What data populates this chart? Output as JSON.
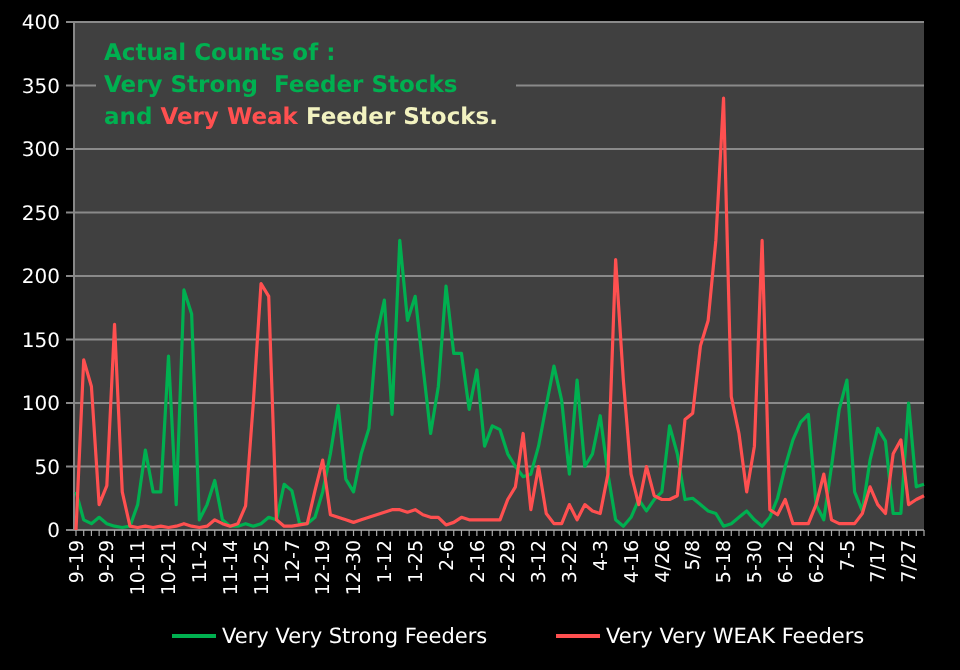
{
  "chart_data": {
    "type": "line",
    "title": "Actual Counts of :\nVery Strong  Feeder Stocks",
    "subtitle": "and Very Weak Feeder Stocks.",
    "categories": [
      "9-19",
      null,
      null,
      null,
      "9-29",
      null,
      null,
      null,
      "10-11",
      null,
      null,
      null,
      "10-21",
      null,
      null,
      null,
      "11-2",
      null,
      null,
      null,
      "11-14",
      null,
      null,
      null,
      "11-25",
      null,
      null,
      null,
      "12-7",
      null,
      null,
      null,
      "12-19",
      null,
      null,
      null,
      "12-30",
      null,
      null,
      null,
      "1-12",
      null,
      null,
      null,
      "1-25",
      null,
      null,
      null,
      "2-6",
      null,
      null,
      null,
      "2-16",
      null,
      null,
      null,
      "2-29",
      null,
      null,
      null,
      "3-12",
      null,
      null,
      null,
      "3-22",
      null,
      null,
      null,
      "4-3",
      null,
      null,
      null,
      "4-16",
      null,
      null,
      null,
      "4/26",
      null,
      null,
      null,
      "5/8",
      null,
      null,
      null,
      "5-18",
      null,
      null,
      null,
      "5-30",
      null,
      null,
      null,
      "6-12",
      null,
      null,
      null,
      "6-22",
      null,
      null,
      null,
      "7-5",
      null,
      null,
      null,
      "7/17",
      null,
      null,
      null,
      "7/27",
      null,
      null
    ],
    "series": [
      {
        "name": "Very Very Strong Feeders",
        "color": "#00b050",
        "values": [
          30,
          8,
          5,
          10,
          5,
          3,
          2,
          3,
          20,
          63,
          30,
          30,
          137,
          20,
          189,
          170,
          8,
          20,
          39,
          8,
          3,
          3,
          5,
          3,
          5,
          10,
          8,
          36,
          31,
          5,
          5,
          10,
          30,
          60,
          98,
          40,
          30,
          60,
          80,
          153,
          181,
          91,
          228,
          165,
          184,
          129,
          76,
          113,
          192,
          139,
          139,
          95,
          126,
          66,
          82,
          79,
          60,
          50,
          42,
          44,
          66,
          98,
          129,
          102,
          44,
          118,
          50,
          60,
          90,
          44,
          8,
          3,
          10,
          24,
          15,
          24,
          30,
          82,
          60,
          24,
          25,
          20,
          15,
          13,
          3,
          5,
          10,
          15,
          8,
          3,
          10,
          25,
          50,
          71,
          85,
          91,
          20,
          8,
          50,
          95,
          118,
          30,
          15,
          55,
          80,
          70,
          13,
          13,
          100,
          34,
          36
        ]
      },
      {
        "name": "Very Very WEAK Feeders",
        "color": "#ff5050",
        "values": [
          0,
          134,
          113,
          20,
          35,
          162,
          30,
          3,
          2,
          3,
          2,
          3,
          2,
          3,
          5,
          3,
          2,
          3,
          8,
          5,
          3,
          5,
          19,
          100,
          194,
          184,
          8,
          3,
          3,
          4,
          5,
          31,
          55,
          12,
          10,
          8,
          6,
          8,
          10,
          12,
          14,
          16,
          16,
          14,
          16,
          12,
          10,
          10,
          4,
          6,
          10,
          8,
          8,
          8,
          8,
          8,
          24,
          34,
          76,
          16,
          50,
          13,
          5,
          5,
          20,
          8,
          20,
          15,
          13,
          44,
          213,
          118,
          44,
          20,
          50,
          27,
          24,
          24,
          27,
          87,
          92,
          145,
          165,
          228,
          340,
          105,
          76,
          30,
          66,
          228,
          16,
          12,
          24,
          5,
          5,
          5,
          20,
          44,
          8,
          5,
          5,
          5,
          13,
          34,
          20,
          13,
          60,
          71,
          20,
          24,
          27
        ]
      }
    ],
    "ylim": [
      0,
      400
    ],
    "yticks": [
      0,
      50,
      100,
      150,
      200,
      250,
      300,
      350,
      400
    ],
    "grid": "y",
    "legend": "bottom",
    "marker": "none",
    "line_style": "solid"
  }
}
